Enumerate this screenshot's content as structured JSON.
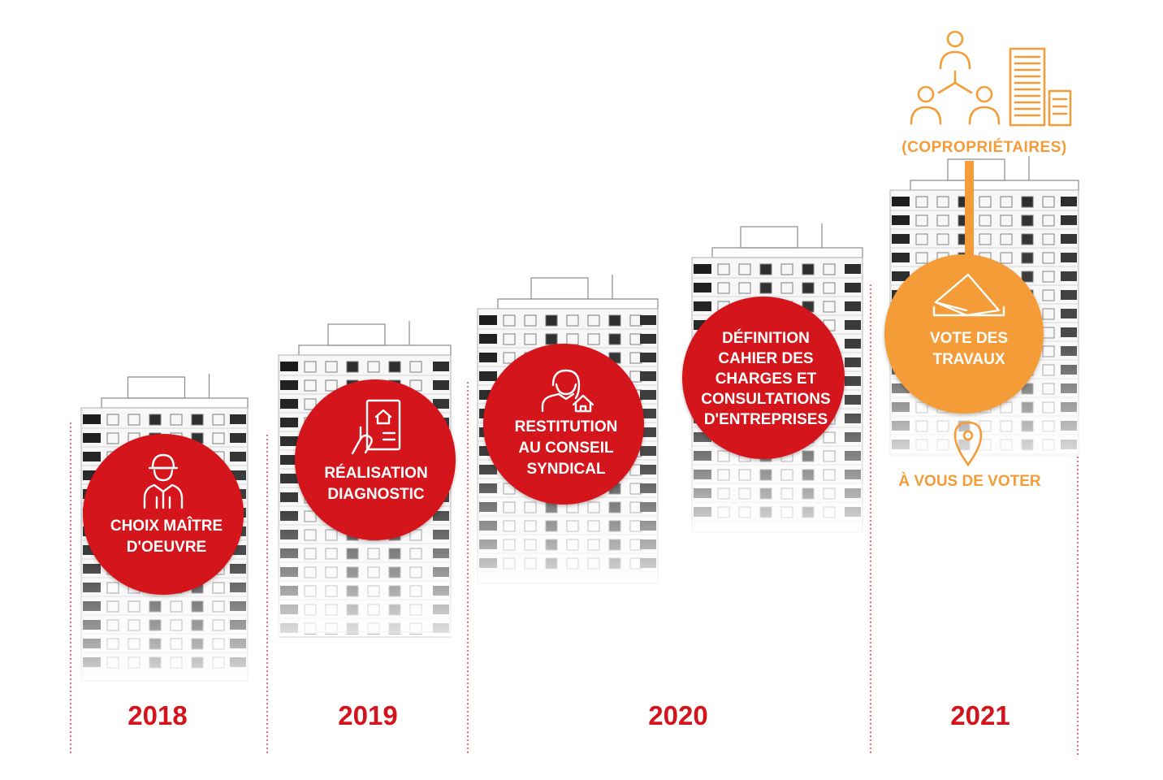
{
  "colors": {
    "red": "#d4141c",
    "orange": "#f39c38",
    "white": "#ffffff",
    "building_line": "#8a8a8a",
    "building_dark": "#1a1a1a"
  },
  "header": {
    "group_icon": "coproprietaires-people-buildings-icon",
    "label": "(COPROPRIÉTAIRES)"
  },
  "steps": [
    {
      "icon": "worker-helmet-icon",
      "lines": [
        "CHOIX MAÎTRE",
        "D'OEUVRE"
      ],
      "color": "red"
    },
    {
      "icon": "tablet-house-hand-icon",
      "lines": [
        "RÉALISATION",
        "DIAGNOSTIC"
      ],
      "color": "red"
    },
    {
      "icon": "woman-house-icon",
      "lines": [
        "RESTITUTION",
        "AU CONSEIL",
        "SYNDICAL"
      ],
      "color": "red"
    },
    {
      "icon": "",
      "lines": [
        "DÉFINITION",
        "CAHIER DES",
        "CHARGES ET",
        "CONSULTATIONS",
        "D'ENTREPRISES"
      ],
      "color": "red"
    },
    {
      "icon": "ballot-envelope-icon",
      "lines": [
        "VOTE DES",
        "TRAVAUX"
      ],
      "color": "orange"
    }
  ],
  "pin": {
    "icon": "location-pin-icon",
    "label": "À VOUS DE VOTER"
  },
  "years": [
    "2018",
    "2019",
    "2020",
    "2021"
  ]
}
